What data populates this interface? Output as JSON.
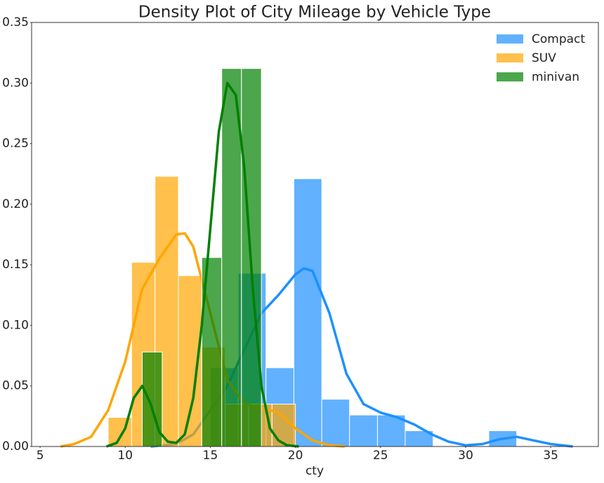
{
  "chart_data": {
    "type": "histogram-kde",
    "title": "Density Plot of City Mileage by Vehicle Type",
    "xlabel": "cty",
    "xlim": [
      4.5,
      37.8
    ],
    "xticks": [
      5,
      10,
      15,
      20,
      25,
      30,
      35
    ],
    "ylim": [
      0,
      0.35
    ],
    "yticks": [
      {
        "value": 0,
        "label": "0.00"
      },
      0.05,
      {
        "value": 0.1,
        "label": "0.10"
      },
      0.15,
      {
        "value": 0.2,
        "label": "0.20"
      },
      0.25,
      {
        "value": 0.3,
        "label": "0.30"
      },
      0.35
    ],
    "grid": false,
    "legend": "upper right",
    "alpha": 0.7,
    "series": [
      {
        "name": "Compact",
        "color": "#1e90ff",
        "bins": [
          15,
          16.64,
          18.27,
          19.91,
          21.55,
          23.18,
          24.82,
          26.45,
          28.09,
          29.73,
          31.36,
          33
        ],
        "values": [
          0.065,
          0.143,
          0.065,
          0.221,
          0.039,
          0.026,
          0.026,
          0.013,
          0,
          0,
          0.013
        ],
        "kde_x": [
          11.5,
          13,
          14,
          15,
          16,
          17,
          18,
          19,
          20,
          20.5,
          21,
          22,
          23,
          24,
          25,
          26,
          27,
          28,
          29,
          30,
          31,
          32,
          33,
          34,
          35,
          36.3
        ],
        "kde_y": [
          0,
          0.002,
          0.01,
          0.03,
          0.05,
          0.08,
          0.11,
          0.125,
          0.142,
          0.147,
          0.145,
          0.11,
          0.06,
          0.035,
          0.028,
          0.024,
          0.018,
          0.01,
          0.004,
          0.001,
          0.002,
          0.006,
          0.008,
          0.005,
          0.002,
          0
        ]
      },
      {
        "name": "SUV",
        "color": "#ffa500",
        "bins": [
          9,
          10.375,
          11.75,
          13.125,
          14.5,
          15.875,
          17.25,
          18.625,
          20
        ],
        "values": [
          0.024,
          0.152,
          0.223,
          0.141,
          0.082,
          0.035,
          0.035,
          0.035
        ],
        "kde_x": [
          6.2,
          7,
          8,
          9,
          10,
          11,
          12,
          13,
          13.5,
          14,
          15,
          16,
          17,
          18,
          19,
          20,
          21,
          22,
          22.9
        ],
        "kde_y": [
          0,
          0.002,
          0.008,
          0.03,
          0.07,
          0.13,
          0.155,
          0.175,
          0.176,
          0.165,
          0.11,
          0.055,
          0.035,
          0.032,
          0.028,
          0.015,
          0.005,
          0.001,
          0
        ]
      },
      {
        "name": "minivan",
        "color": "#008000",
        "bins": [
          11,
          12.17,
          13.33,
          14.5,
          15.67,
          16.83,
          18
        ],
        "values": [
          0.078,
          0,
          0,
          0.156,
          0.312,
          0.312
        ],
        "kde_x": [
          8.9,
          9.5,
          10,
          10.5,
          11,
          11.5,
          12,
          12.5,
          13,
          13.5,
          14,
          14.5,
          15,
          15.5,
          16,
          16.5,
          17,
          17.5,
          18,
          18.5,
          19,
          19.5,
          20.2
        ],
        "kde_y": [
          0,
          0.003,
          0.015,
          0.04,
          0.05,
          0.035,
          0.012,
          0.004,
          0.003,
          0.01,
          0.04,
          0.1,
          0.18,
          0.26,
          0.3,
          0.29,
          0.23,
          0.13,
          0.05,
          0.015,
          0.005,
          0.001,
          0
        ]
      }
    ]
  }
}
